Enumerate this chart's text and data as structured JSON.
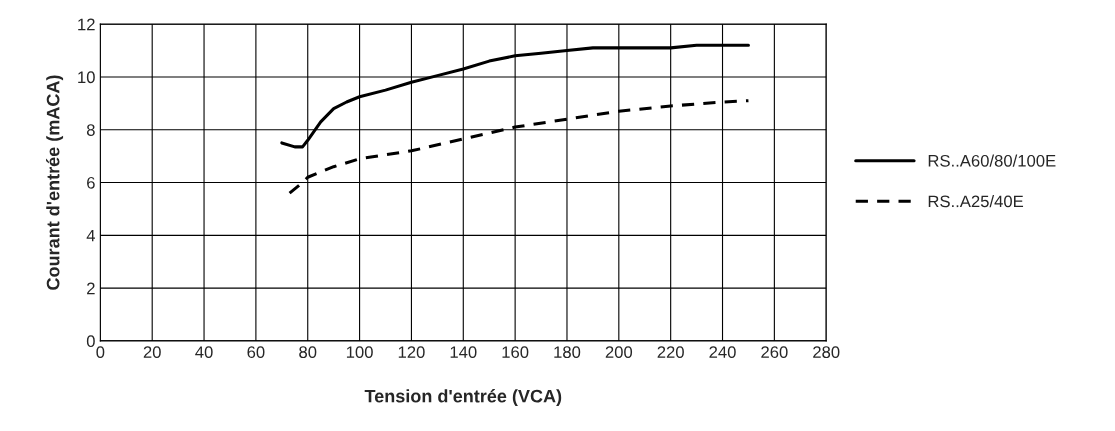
{
  "chart_data": {
    "type": "line",
    "xlabel": "Tension d'entrée (VCA)",
    "ylabel": "Courant d'entrée (mACA)",
    "xlim": [
      0,
      280
    ],
    "xticks": [
      0,
      20,
      40,
      60,
      80,
      100,
      120,
      140,
      160,
      180,
      200,
      220,
      240,
      260,
      280
    ],
    "ylim": [
      0,
      12
    ],
    "yticks": [
      0,
      2,
      4,
      6,
      8,
      10,
      12
    ],
    "grid": true,
    "legend": "right",
    "marker": "none",
    "series": [
      {
        "name": "RS..A60/80/100E",
        "color": "#000000",
        "line_style": "solid",
        "x": [
          70,
          75,
          78,
          80,
          85,
          90,
          95,
          100,
          110,
          120,
          130,
          140,
          150,
          160,
          170,
          180,
          190,
          200,
          210,
          220,
          230,
          240,
          250
        ],
        "values": [
          7.5,
          7.35,
          7.35,
          7.6,
          8.3,
          8.8,
          9.05,
          9.25,
          9.5,
          9.8,
          10.05,
          10.3,
          10.6,
          10.8,
          10.9,
          11.0,
          11.1,
          11.1,
          11.1,
          11.1,
          11.2,
          11.2,
          11.2
        ]
      },
      {
        "name": "RS..A25/40E",
        "color": "#000000",
        "line_style": "dashed",
        "x": [
          73,
          78,
          80,
          90,
          100,
          120,
          140,
          160,
          180,
          200,
          220,
          240,
          250
        ],
        "values": [
          5.6,
          6.0,
          6.2,
          6.6,
          6.9,
          7.2,
          7.65,
          8.1,
          8.4,
          8.7,
          8.9,
          9.05,
          9.1
        ]
      }
    ]
  }
}
